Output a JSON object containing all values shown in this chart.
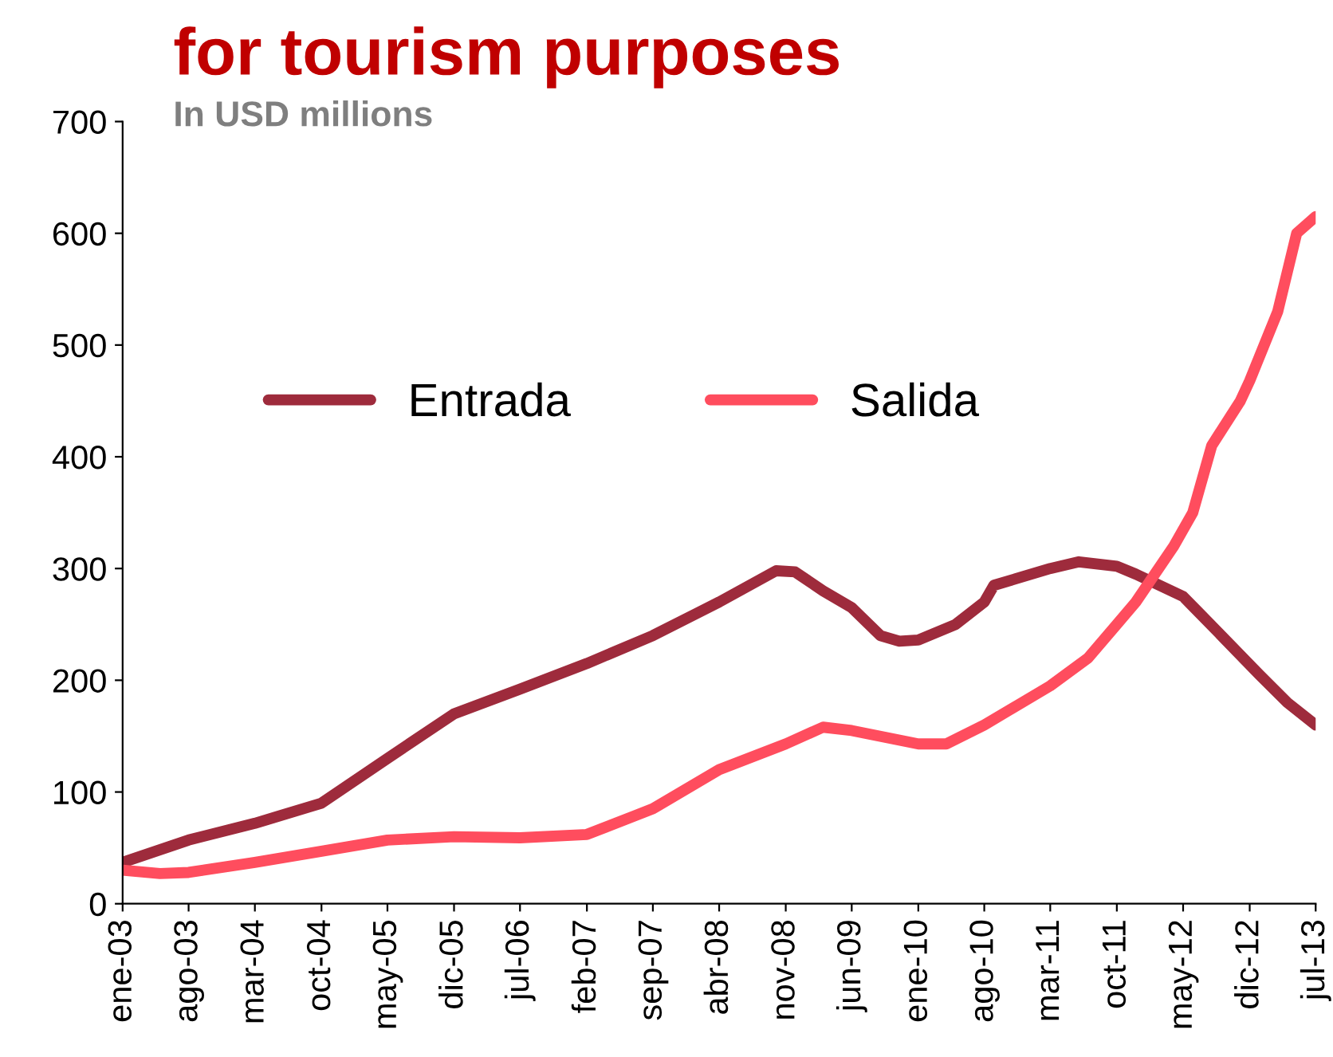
{
  "chart_data": {
    "type": "line",
    "title": "for tourism purposes",
    "subtitle": "In USD millions",
    "ylim": [
      0,
      700
    ],
    "yticks": [
      0,
      100,
      200,
      300,
      400,
      500,
      600,
      700
    ],
    "xlim": [
      "2003-01",
      "2013-07"
    ],
    "xticks": [
      {
        "value": "2003-01",
        "label": "ene-03"
      },
      {
        "value": "2003-08",
        "label": "ago-03"
      },
      {
        "value": "2004-03",
        "label": "mar-04"
      },
      {
        "value": "2004-10",
        "label": "oct-04"
      },
      {
        "value": "2005-05",
        "label": "may-05"
      },
      {
        "value": "2005-12",
        "label": "dic-05"
      },
      {
        "value": "2006-07",
        "label": "jul-06"
      },
      {
        "value": "2007-02",
        "label": "feb-07"
      },
      {
        "value": "2007-09",
        "label": "sep-07"
      },
      {
        "value": "2008-04",
        "label": "abr-08"
      },
      {
        "value": "2008-11",
        "label": "nov-08"
      },
      {
        "value": "2009-06",
        "label": "jun-09"
      },
      {
        "value": "2010-01",
        "label": "ene-10"
      },
      {
        "value": "2010-08",
        "label": "ago-10"
      },
      {
        "value": "2011-03",
        "label": "mar-11"
      },
      {
        "value": "2011-10",
        "label": "oct-11"
      },
      {
        "value": "2012-05",
        "label": "may-12"
      },
      {
        "value": "2012-12",
        "label": "dic-12"
      },
      {
        "value": "2013-07",
        "label": "jul-13"
      }
    ],
    "legend": "top",
    "grid": false,
    "marker": "none",
    "line_style": "solid",
    "series": [
      {
        "name": "Entrada",
        "color": "#9e2b3c",
        "x": [
          "2003-01",
          "2003-08",
          "2004-03",
          "2004-10",
          "2005-05",
          "2005-12",
          "2006-07",
          "2007-02",
          "2007-09",
          "2008-04",
          "2008-10",
          "2008-12",
          "2009-03",
          "2009-06",
          "2009-09",
          "2009-11",
          "2010-01",
          "2010-05",
          "2010-08",
          "2010-09",
          "2011-03",
          "2011-06",
          "2011-10",
          "2011-12",
          "2012-05",
          "2012-09",
          "2013-01",
          "2013-04",
          "2013-07"
        ],
        "values": [
          37,
          57,
          72,
          90,
          130,
          170,
          192,
          215,
          240,
          270,
          298,
          297,
          280,
          265,
          240,
          235,
          236,
          250,
          270,
          285,
          300,
          306,
          302,
          295,
          275,
          240,
          205,
          180,
          160
        ]
      },
      {
        "name": "Salida",
        "color": "#ff4d5e",
        "x": [
          "2003-01",
          "2003-05",
          "2003-08",
          "2004-03",
          "2004-10",
          "2005-05",
          "2005-12",
          "2006-07",
          "2007-02",
          "2007-09",
          "2008-04",
          "2008-11",
          "2009-03",
          "2009-06",
          "2010-01",
          "2010-04",
          "2010-08",
          "2011-03",
          "2011-07",
          "2011-10",
          "2011-12",
          "2012-04",
          "2012-06",
          "2012-08",
          "2012-11",
          "2012-12",
          "2013-03",
          "2013-05",
          "2013-07"
        ],
        "values": [
          30,
          27,
          28,
          37,
          47,
          57,
          60,
          59,
          62,
          85,
          120,
          143,
          158,
          155,
          143,
          143,
          160,
          195,
          220,
          250,
          270,
          320,
          350,
          410,
          450,
          468,
          530,
          600,
          615
        ]
      }
    ]
  }
}
